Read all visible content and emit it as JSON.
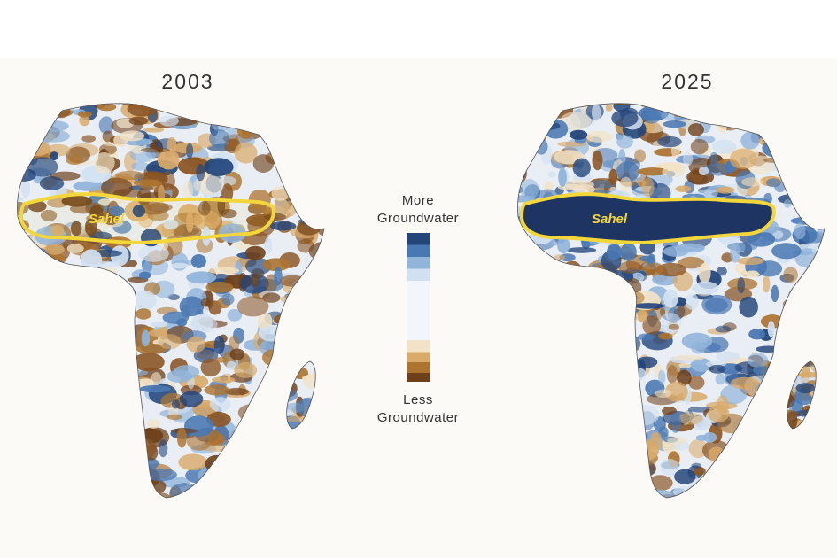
{
  "maps": [
    {
      "year": "2003",
      "region_label": "Sahel"
    },
    {
      "year": "2025",
      "region_label": "Sahel"
    }
  ],
  "legend": {
    "top_label": [
      "More",
      "Groundwater"
    ],
    "bottom_label": [
      "Less",
      "Groundwater"
    ]
  }
}
